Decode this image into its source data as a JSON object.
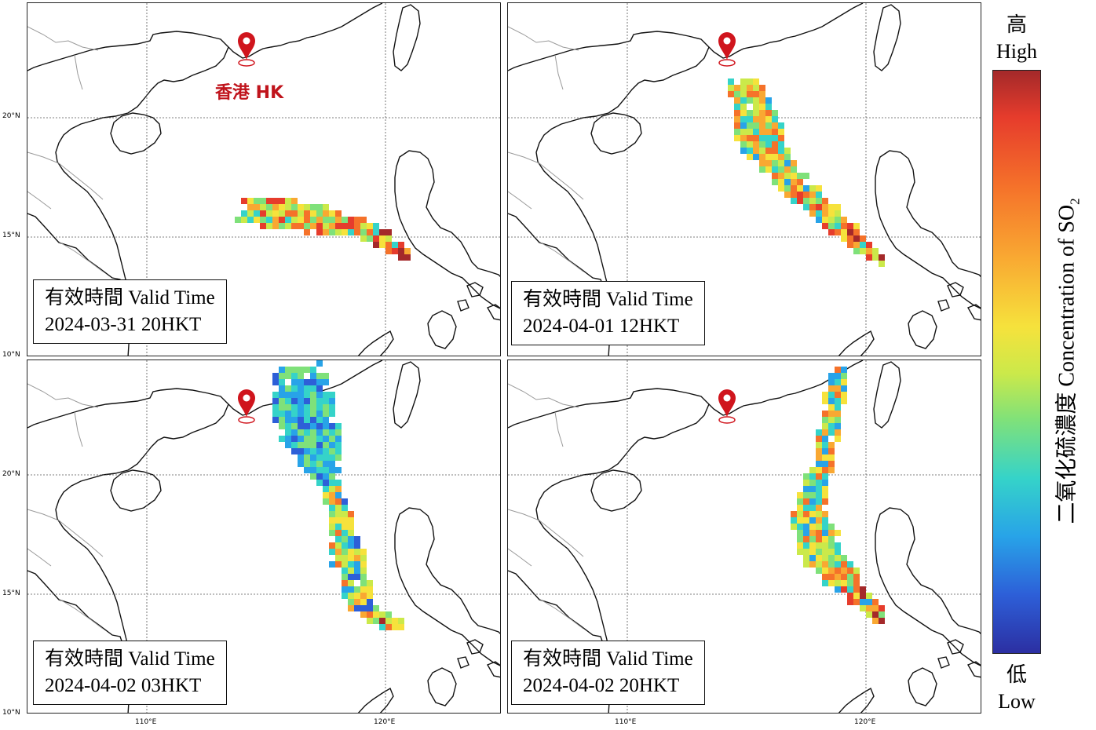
{
  "marker_label": "香港 HK",
  "tick_labels": {
    "lat_20": "20°N",
    "lat_15": "15°N",
    "lat_10": "10°N",
    "lon_110": "110°E",
    "lon_120": "120°E"
  },
  "panels": [
    {
      "valid_label": "有效時間 Valid Time",
      "valid_time": "2024-03-31 20HKT"
    },
    {
      "valid_label": "有效時間 Valid Time",
      "valid_time": "2024-04-01 12HKT"
    },
    {
      "valid_label": "有效時間 Valid Time",
      "valid_time": "2024-04-02 03HKT"
    },
    {
      "valid_label": "有效時間 Valid Time",
      "valid_time": "2024-04-02 20HKT"
    }
  ],
  "colorbar": {
    "high_zh": "高",
    "high_en": "High",
    "low_zh": "低",
    "low_en": "Low",
    "title_prefix": "二氧化硫濃度 Concentration of SO",
    "title_sub": "2",
    "colors": [
      "#a4292a",
      "#e63c2c",
      "#f5722a",
      "#f9a832",
      "#f6e23c",
      "#cbe94a",
      "#7fe17a",
      "#35d3c9",
      "#28a3e8",
      "#2d5fd8",
      "#2c2fa2"
    ]
  },
  "marker_color": "#d0151d"
}
